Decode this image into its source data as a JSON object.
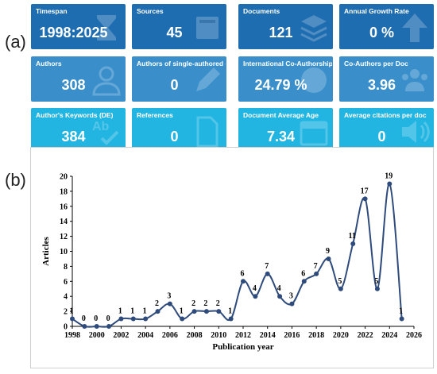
{
  "panels": {
    "a": "(a)",
    "b": "(b)"
  },
  "cards": [
    {
      "title": "Timespan",
      "value": "1998:2025",
      "icon": "hourglass-icon",
      "color": "#1f6db1"
    },
    {
      "title": "Sources",
      "value": "45",
      "icon": "book-icon",
      "color": "#1f6db1"
    },
    {
      "title": "Documents",
      "value": "121",
      "icon": "layers-icon",
      "color": "#1f6db1"
    },
    {
      "title": "Annual Growth Rate",
      "value": "0 %",
      "icon": "arrow-up-icon",
      "color": "#1f6db1"
    },
    {
      "title": "Authors",
      "value": "308",
      "icon": "person-icon",
      "color": "#3a8fcb"
    },
    {
      "title": "Authors of single-authored d",
      "value": "0",
      "icon": "pen-icon",
      "color": "#3a8fcb"
    },
    {
      "title": "International Co-Authorship",
      "value": "24.79 %",
      "icon": "globe-icon",
      "color": "#3a8fcb"
    },
    {
      "title": "Co-Authors per Doc",
      "value": "3.96",
      "icon": "group-icon",
      "color": "#3a8fcb"
    },
    {
      "title": "Author's Keywords (DE)",
      "value": "384",
      "icon": "spellcheck-icon",
      "color": "#22b5e2"
    },
    {
      "title": "References",
      "value": "0",
      "icon": "document-icon",
      "color": "#22b5e2"
    },
    {
      "title": "Document Average Age",
      "value": "7.34",
      "icon": "calendar-icon",
      "color": "#22b5e2"
    },
    {
      "title": "Average citations per doc",
      "value": "0",
      "icon": "speaker-icon",
      "color": "#22b5e2"
    }
  ],
  "chart_data": {
    "type": "line",
    "xlabel": "Publication year",
    "ylabel": "Articles",
    "x": [
      1998,
      1999,
      2000,
      2001,
      2002,
      2003,
      2004,
      2005,
      2006,
      2007,
      2008,
      2009,
      2010,
      2011,
      2012,
      2013,
      2014,
      2015,
      2016,
      2017,
      2018,
      2019,
      2020,
      2021,
      2022,
      2023,
      2024,
      2025
    ],
    "values": [
      1,
      0,
      0,
      0,
      1,
      1,
      1,
      2,
      3,
      1,
      2,
      2,
      2,
      1,
      6,
      4,
      7,
      4,
      3,
      6,
      7,
      9,
      5,
      11,
      17,
      5,
      19,
      1
    ],
    "xlim": [
      1998,
      2026
    ],
    "ylim": [
      0,
      20
    ],
    "xticks": [
      1998,
      2000,
      2002,
      2004,
      2006,
      2008,
      2010,
      2012,
      2014,
      2016,
      2018,
      2020,
      2022,
      2024,
      2026
    ],
    "yticks": [
      0,
      2,
      4,
      6,
      8,
      10,
      12,
      14,
      16,
      18,
      20
    ],
    "grid": false,
    "line_color": "#2f4b7c",
    "marker_color": "#2f4b7c"
  }
}
